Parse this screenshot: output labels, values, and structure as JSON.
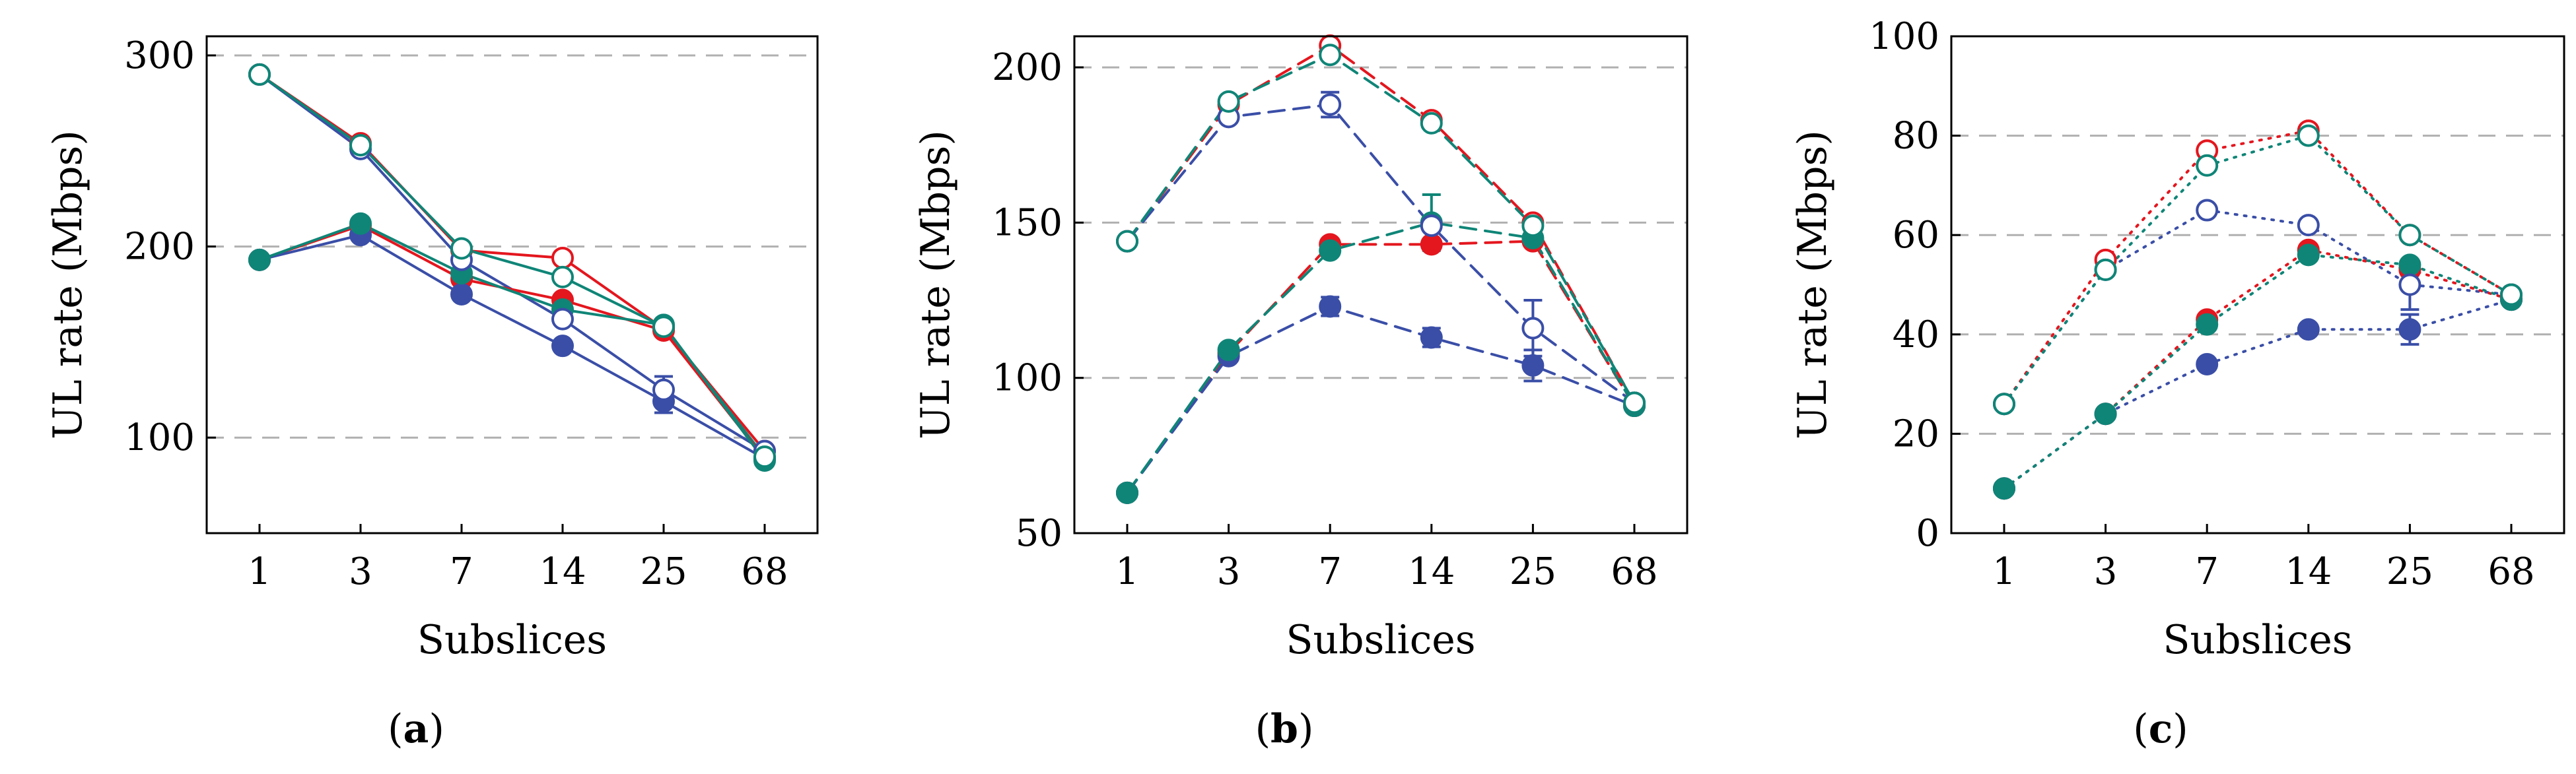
{
  "colors": {
    "red": "#e4161e",
    "teal": "#0f8577",
    "blue": "#3a4ea7",
    "grid": "#b0b0b0"
  },
  "chart_data": [
    {
      "type": "line",
      "caption": "a",
      "xlabel": "Subslices",
      "ylabel": "UL rate (Mbps)",
      "categories": [
        "1",
        "3",
        "7",
        "14",
        "25",
        "68"
      ],
      "ylim": [
        50,
        310
      ],
      "yticks": [
        100,
        200,
        300
      ],
      "dash": "none",
      "series": [
        {
          "name": "red-open",
          "color": "red",
          "marker": "open",
          "values": [
            290,
            254,
            198,
            194,
            157,
            93
          ]
        },
        {
          "name": "blue-open",
          "color": "blue",
          "marker": "open",
          "values": [
            290,
            251,
            193,
            162,
            125,
            93
          ]
        },
        {
          "name": "teal-open",
          "color": "teal",
          "marker": "open",
          "values": [
            290,
            253,
            199,
            184,
            158,
            90
          ]
        },
        {
          "name": "red-filled",
          "color": "red",
          "marker": "filled",
          "values": [
            193,
            211,
            183,
            172,
            156,
            89
          ]
        },
        {
          "name": "blue-filled",
          "color": "blue",
          "marker": "filled",
          "values": [
            193,
            206,
            175,
            148,
            119,
            89
          ]
        },
        {
          "name": "teal-filled",
          "color": "teal",
          "marker": "filled",
          "values": [
            193,
            212,
            186,
            167,
            159,
            88
          ]
        }
      ],
      "errors": [
        {
          "series": "blue-open",
          "index": 4,
          "err": 7
        },
        {
          "series": "blue-filled",
          "index": 4,
          "err": 6
        }
      ]
    },
    {
      "type": "line",
      "caption": "b",
      "xlabel": "Subslices",
      "ylabel": "UL rate (Mbps)",
      "categories": [
        "1",
        "3",
        "7",
        "14",
        "25",
        "68"
      ],
      "ylim": [
        50,
        210
      ],
      "yticks": [
        50,
        100,
        150,
        200
      ],
      "dash": "24 14",
      "series": [
        {
          "name": "red-open",
          "color": "red",
          "marker": "open",
          "values": [
            144,
            188,
            207,
            183,
            150,
            92
          ]
        },
        {
          "name": "blue-open",
          "color": "blue",
          "marker": "open",
          "values": [
            144,
            184,
            188,
            149,
            116,
            92
          ]
        },
        {
          "name": "teal-open",
          "color": "teal",
          "marker": "open",
          "values": [
            144,
            189,
            204,
            182,
            149,
            92
          ]
        },
        {
          "name": "red-filled",
          "color": "red",
          "marker": "filled",
          "values": [
            63,
            108,
            143,
            143,
            144,
            91
          ]
        },
        {
          "name": "blue-filled",
          "color": "blue",
          "marker": "filled",
          "values": [
            63,
            107,
            123,
            113,
            104,
            91
          ]
        },
        {
          "name": "teal-filled",
          "color": "teal",
          "marker": "filled",
          "values": [
            63,
            109,
            141,
            150,
            145,
            91
          ]
        }
      ],
      "errors": [
        {
          "series": "blue-open",
          "index": 2,
          "err": 4
        },
        {
          "series": "blue-open",
          "index": 4,
          "err": 9
        },
        {
          "series": "blue-filled",
          "index": 2,
          "err": 3
        },
        {
          "series": "blue-filled",
          "index": 3,
          "err": 3
        },
        {
          "series": "blue-filled",
          "index": 4,
          "err": 5
        },
        {
          "series": "teal-filled",
          "index": 3,
          "err": 9
        }
      ]
    },
    {
      "type": "line",
      "caption": "c",
      "xlabel": "Subslices",
      "ylabel": "UL rate (Mbps)",
      "categories": [
        "1",
        "3",
        "7",
        "14",
        "25",
        "68"
      ],
      "ylim": [
        0,
        100
      ],
      "yticks": [
        0,
        20,
        40,
        60,
        80,
        100
      ],
      "dash": "3 11",
      "series": [
        {
          "name": "red-open",
          "color": "red",
          "marker": "open",
          "values": [
            26,
            55,
            77,
            81,
            60,
            48
          ]
        },
        {
          "name": "blue-open",
          "color": "blue",
          "marker": "open",
          "values": [
            26,
            53,
            65,
            62,
            50,
            48
          ]
        },
        {
          "name": "teal-open",
          "color": "teal",
          "marker": "open",
          "values": [
            26,
            53,
            74,
            80,
            60,
            48
          ]
        },
        {
          "name": "red-filled",
          "color": "red",
          "marker": "filled",
          "values": [
            9,
            24,
            43,
            57,
            53,
            47
          ]
        },
        {
          "name": "blue-filled",
          "color": "blue",
          "marker": "filled",
          "values": [
            9,
            24,
            34,
            41,
            41,
            47
          ]
        },
        {
          "name": "teal-filled",
          "color": "teal",
          "marker": "filled",
          "values": [
            9,
            24,
            42,
            56,
            54,
            47
          ]
        }
      ],
      "errors": [
        {
          "series": "blue-open",
          "index": 4,
          "err": 5
        },
        {
          "series": "blue-filled",
          "index": 4,
          "err": 3
        }
      ]
    }
  ]
}
